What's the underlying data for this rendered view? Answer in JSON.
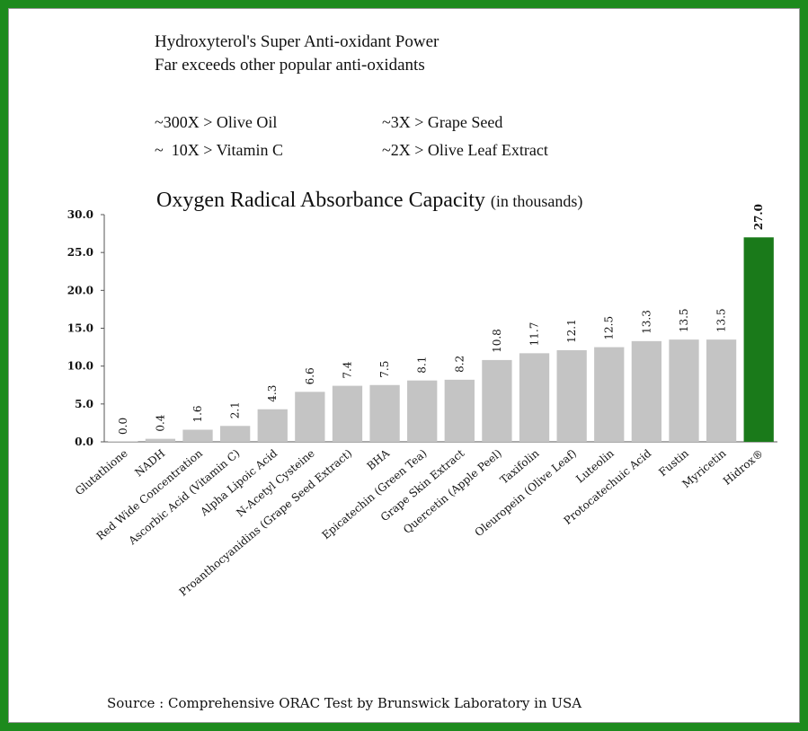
{
  "headline": {
    "line1": "Hydroxyterol's Super Anti-oxidant Power",
    "line2": "Far exceeds other popular anti-oxidants"
  },
  "comparisons": {
    "olive_oil": "~300X > Olive Oil",
    "grape_seed": "~3X > Grape Seed",
    "vitamin_c": "~  10X > Vitamin C",
    "olive_leaf": "~2X > Olive Leaf Extract"
  },
  "source": "Source : Comprehensive ORAC Test by Brunswick Laboratory in USA",
  "colors": {
    "frame": "#1d8a1d",
    "bar": "#c4c4c4",
    "highlight_bar": "#1a7a1a"
  },
  "chart_data": {
    "type": "bar",
    "title": "Oxygen Radical Absorbance Capacity",
    "subtitle": "(in thousands)",
    "xlabel": "",
    "ylabel": "",
    "ylim": [
      0,
      30
    ],
    "yticks": [
      "0.0",
      "5.0",
      "10.0",
      "15.0",
      "20.0",
      "25.0",
      "30.0"
    ],
    "grid": false,
    "legend": "none",
    "categories": [
      "Glutathione",
      "NADH",
      "Red Wide Concentration",
      "Ascorbic Acid (Vitamin C)",
      "Alpha Lipoic Acid",
      "N-Acetyl Cysteine",
      "Proanthocyanidins (Grape Seed Extract)",
      "BHA",
      "Epicatechin (Green Tea)",
      "Grape Skin Extract",
      "Quercetin (Apple Peel)",
      "Taxifolin",
      "Oleuropein (Olive Leaf)",
      "Luteolin",
      "Protocatechuic Acid",
      "Fustin",
      "Myricetin",
      "Hidrox®"
    ],
    "values": [
      0.0,
      0.4,
      1.6,
      2.1,
      4.3,
      6.6,
      7.4,
      7.5,
      8.1,
      8.2,
      10.8,
      11.7,
      12.1,
      12.5,
      13.3,
      13.5,
      13.5,
      27.0
    ],
    "value_labels": [
      "0.0",
      "0.4",
      "1.6",
      "2.1",
      "4.3",
      "6.6",
      "7.4",
      "7.5",
      "8.1",
      "8.2",
      "10.8",
      "11.7",
      "12.1",
      "12.5",
      "13.3",
      "13.5",
      "13.5",
      "27.0"
    ],
    "highlight_index": 17
  }
}
